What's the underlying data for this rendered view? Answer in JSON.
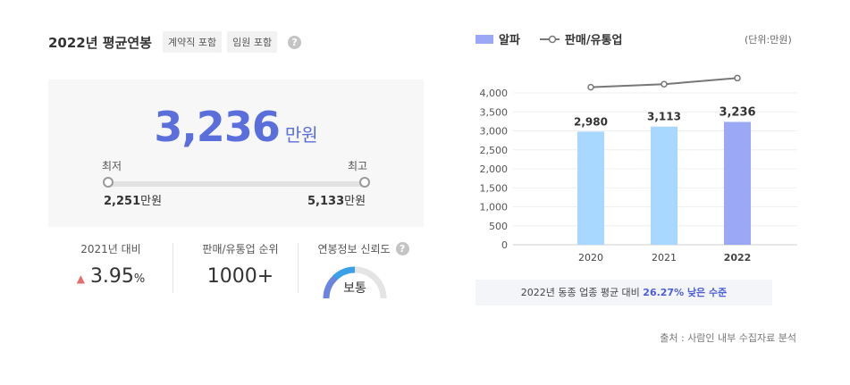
{
  "header": {
    "title": "2022년 평균연봉",
    "tags": [
      "계약직 포함",
      "임원 포함"
    ],
    "help": "?"
  },
  "salary": {
    "average": "3,236",
    "average_unit": "만원",
    "min_label": "최저",
    "max_label": "최고",
    "min_value": "2,251",
    "max_value": "5,133",
    "unit": "만원"
  },
  "stats": {
    "yoy_label": "2021년 대비",
    "yoy_arrow": "▲",
    "yoy_value": "3.95",
    "yoy_unit": "%",
    "rank_label": "판매/유통업 순위",
    "rank_value": "1000+",
    "reliability_label": "연봉정보 신뢰도",
    "reliability_value": "보통",
    "reliability_level": 0.5
  },
  "legend": {
    "company": "알파",
    "industry": "판매/유통업",
    "unit_note": "(단위:만원)"
  },
  "chart_data": {
    "type": "bar",
    "categories": [
      "2020",
      "2021",
      "2022"
    ],
    "series": [
      {
        "name": "알파",
        "type": "bar",
        "values": [
          2980,
          3113,
          3236
        ],
        "labels": [
          "2,980",
          "3,113",
          "3,236"
        ]
      },
      {
        "name": "판매/유통업",
        "type": "line",
        "values": [
          4150,
          4230,
          4390
        ]
      }
    ],
    "yticks": [
      "0",
      "500",
      "1,000",
      "1,500",
      "2,000",
      "2,500",
      "3,000",
      "3,500",
      "4,000"
    ],
    "ylim": [
      0,
      4000
    ],
    "grid": true,
    "colors": {
      "bar": "#a8d8ff",
      "bar_highlight": "#9aa8f5",
      "line": "#777777"
    }
  },
  "note": {
    "prefix": "2022년 동종 업종 평균 대비 ",
    "highlight": "26.27% 낮은 수준"
  },
  "source": "출처 : 사람인 내부 수집자료 분석"
}
